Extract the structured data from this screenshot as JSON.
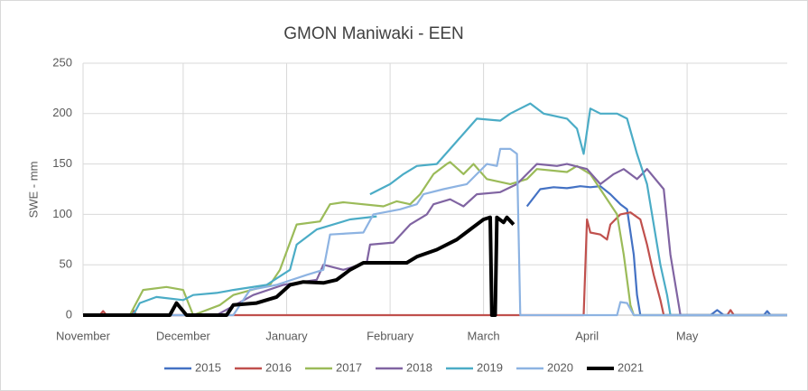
{
  "chart_data": {
    "type": "line",
    "title": "GMON Maniwaki - EEN",
    "y_label": "SWE - mm",
    "xlim": [
      0,
      211
    ],
    "xticks": [
      {
        "value": 0,
        "label": "November"
      },
      {
        "value": 30,
        "label": "December"
      },
      {
        "value": 61,
        "label": "January"
      },
      {
        "value": 92,
        "label": "February"
      },
      {
        "value": 120,
        "label": "March"
      },
      {
        "value": 151,
        "label": "April"
      },
      {
        "value": 181,
        "label": "May"
      }
    ],
    "ylim": [
      0,
      250
    ],
    "yticks": [
      0,
      50,
      100,
      150,
      200,
      250
    ],
    "grid": true,
    "legend": "bottom",
    "series": [
      {
        "name": "2015",
        "color": "#4472c4",
        "x": [
          0,
          14,
          15,
          16,
          130,
          133,
          137,
          141,
          145,
          149,
          152,
          155,
          158,
          161,
          163,
          165,
          166,
          167,
          170,
          188,
          190,
          192,
          204,
          205,
          206,
          211
        ],
        "values": [
          0,
          0,
          4,
          0,
          null,
          108,
          125,
          127,
          126,
          128,
          127,
          128,
          120,
          110,
          105,
          60,
          20,
          0,
          0,
          0,
          5,
          0,
          0,
          4,
          0,
          0
        ]
      },
      {
        "name": "2016",
        "color": "#c0504d",
        "x": [
          0,
          5,
          6,
          7,
          14,
          15,
          16,
          150,
          151,
          152,
          155,
          157,
          158,
          161,
          164,
          167,
          169,
          171,
          173,
          174,
          193,
          194,
          195,
          211
        ],
        "values": [
          0,
          0,
          4,
          0,
          0,
          5,
          0,
          0,
          95,
          82,
          80,
          75,
          90,
          100,
          102,
          95,
          70,
          40,
          15,
          0,
          0,
          5,
          0,
          0
        ]
      },
      {
        "name": "2017",
        "color": "#9bbb59",
        "x": [
          0,
          14,
          18,
          25,
          30,
          33,
          41,
          45,
          56,
          59,
          64,
          71,
          74,
          78,
          90,
          94,
          98,
          101,
          105,
          109,
          110,
          114,
          117,
          121,
          128,
          133,
          136,
          145,
          148,
          152,
          156,
          160,
          162,
          164,
          165,
          211
        ],
        "values": [
          0,
          0,
          25,
          28,
          25,
          0,
          10,
          20,
          30,
          45,
          90,
          93,
          110,
          112,
          108,
          113,
          110,
          120,
          140,
          150,
          152,
          140,
          150,
          135,
          130,
          135,
          145,
          142,
          148,
          140,
          120,
          100,
          60,
          10,
          0,
          0
        ]
      },
      {
        "name": "2018",
        "color": "#8064a2",
        "x": [
          0,
          40,
          51,
          60,
          70,
          72,
          78,
          83,
          85,
          86,
          93,
          98,
          103,
          105,
          110,
          114,
          118,
          125,
          130,
          136,
          142,
          145,
          151,
          155,
          159,
          162,
          166,
          169,
          174,
          176,
          179,
          211
        ],
        "values": [
          0,
          0,
          20,
          30,
          35,
          50,
          45,
          50,
          52,
          70,
          72,
          90,
          100,
          110,
          115,
          108,
          120,
          122,
          130,
          150,
          148,
          150,
          145,
          130,
          140,
          145,
          135,
          145,
          125,
          60,
          0,
          0
        ]
      },
      {
        "name": "2019",
        "color": "#4bacc6",
        "x": [
          0,
          15,
          17,
          22,
          30,
          33,
          40,
          45,
          55,
          62,
          64,
          70,
          80,
          88,
          82,
          86,
          92,
          96,
          100,
          106,
          110,
          114,
          118,
          125,
          128,
          131,
          134,
          138,
          145,
          148,
          150,
          152,
          155,
          160,
          163,
          166,
          169,
          171,
          173,
          175,
          176,
          211
        ],
        "values": [
          0,
          0,
          12,
          18,
          15,
          20,
          22,
          25,
          30,
          45,
          70,
          85,
          95,
          98,
          null,
          120,
          130,
          140,
          148,
          150,
          165,
          180,
          195,
          193,
          200,
          205,
          210,
          200,
          195,
          185,
          160,
          205,
          200,
          200,
          195,
          160,
          130,
          90,
          50,
          20,
          0,
          0
        ]
      },
      {
        "name": "2020",
        "color": "#8db3e2",
        "x": [
          0,
          45,
          50,
          58,
          67,
          72,
          74,
          84,
          87,
          95,
          100,
          102,
          108,
          115,
          121,
          124,
          125,
          128,
          130,
          131,
          160,
          161,
          163,
          165,
          211
        ],
        "values": [
          0,
          0,
          25,
          30,
          40,
          45,
          80,
          82,
          100,
          105,
          110,
          120,
          125,
          130,
          150,
          148,
          165,
          165,
          160,
          0,
          0,
          13,
          12,
          0,
          0
        ]
      },
      {
        "name": "2021",
        "color": "#000000",
        "x": [
          0,
          26,
          28,
          31,
          43,
          45,
          52,
          58,
          62,
          66,
          72,
          76,
          80,
          84,
          97,
          100,
          106,
          112,
          116,
          120,
          122,
          122.5,
          123.5,
          124,
          126,
          127,
          129
        ],
        "values": [
          0,
          0,
          12,
          0,
          0,
          10,
          12,
          18,
          30,
          33,
          32,
          35,
          45,
          52,
          52,
          58,
          65,
          75,
          85,
          95,
          97,
          0,
          0,
          97,
          92,
          97,
          90
        ]
      }
    ]
  }
}
